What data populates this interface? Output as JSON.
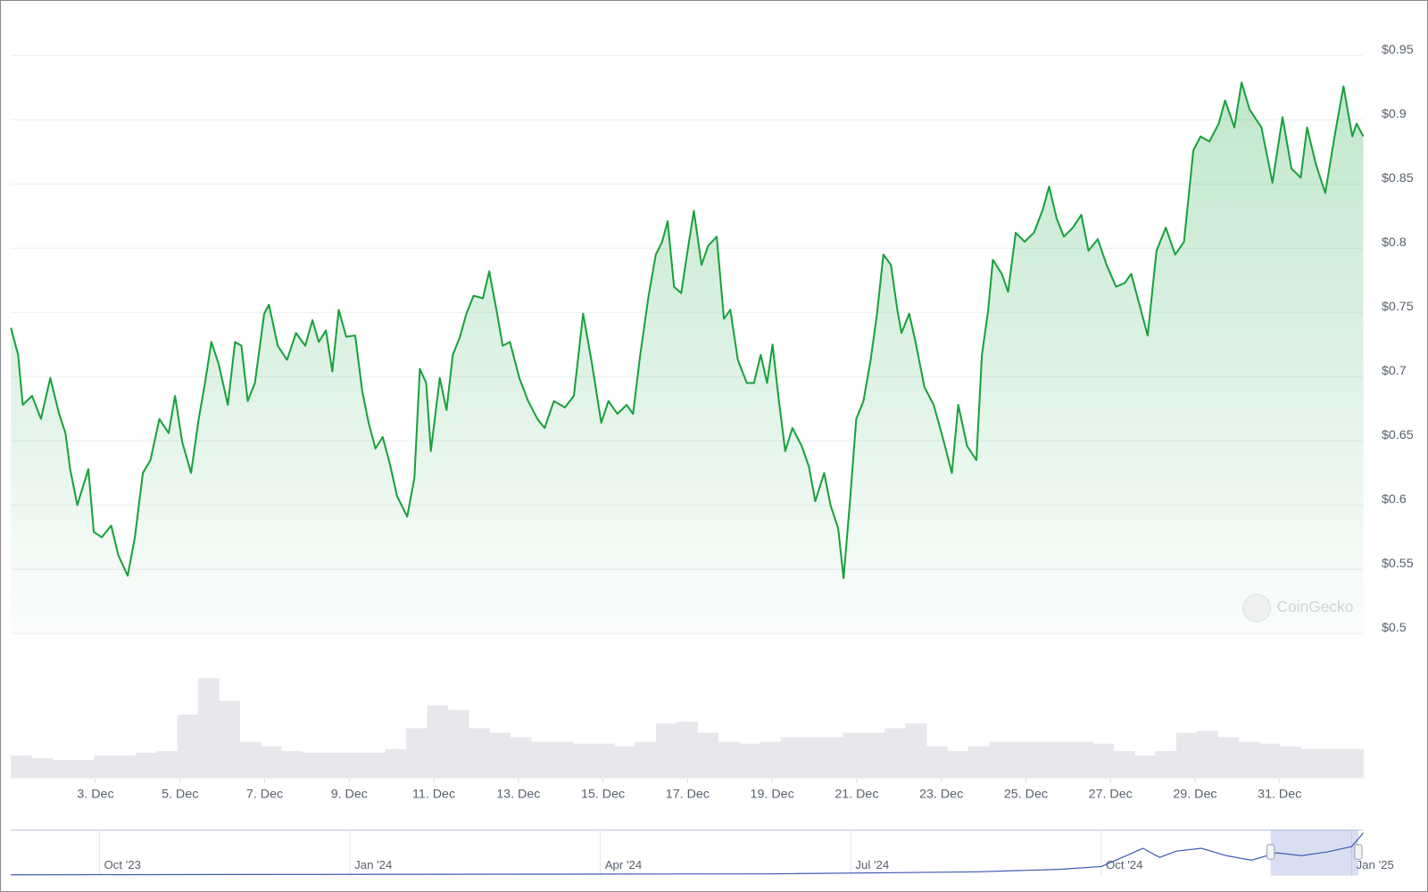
{
  "chart_data": {
    "type": "line",
    "color": "#18a23b",
    "grid": true,
    "watermark": "CoinGecko",
    "xlim": [
      1,
      32.98
    ],
    "ylim": [
      0.5,
      0.95
    ],
    "xticks": [
      {
        "value": 3,
        "label": "3. Dec"
      },
      {
        "value": 5,
        "label": "5. Dec"
      },
      {
        "value": 7,
        "label": "7. Dec"
      },
      {
        "value": 9,
        "label": "9. Dec"
      },
      {
        "value": 11,
        "label": "11. Dec"
      },
      {
        "value": 13,
        "label": "13. Dec"
      },
      {
        "value": 15,
        "label": "15. Dec"
      },
      {
        "value": 17,
        "label": "17. Dec"
      },
      {
        "value": 19,
        "label": "19. Dec"
      },
      {
        "value": 21,
        "label": "21. Dec"
      },
      {
        "value": 23,
        "label": "23. Dec"
      },
      {
        "value": 25,
        "label": "25. Dec"
      },
      {
        "value": 27,
        "label": "27. Dec"
      },
      {
        "value": 29,
        "label": "29. Dec"
      },
      {
        "value": 31,
        "label": "31. Dec"
      }
    ],
    "yticks": [
      {
        "value": 0.5,
        "label": "$0.5"
      },
      {
        "value": 0.55,
        "label": "$0.55"
      },
      {
        "value": 0.6,
        "label": "$0.6"
      },
      {
        "value": 0.65,
        "label": "$0.65"
      },
      {
        "value": 0.7,
        "label": "$0.7"
      },
      {
        "value": 0.75,
        "label": "$0.75"
      },
      {
        "value": 0.8,
        "label": "$0.8"
      },
      {
        "value": 0.85,
        "label": "$0.85"
      },
      {
        "value": 0.9,
        "label": "$0.9"
      },
      {
        "value": 0.95,
        "label": "$0.95"
      }
    ],
    "x": [
      1.0,
      1.17,
      1.28,
      1.5,
      1.71,
      1.93,
      2.14,
      2.29,
      2.4,
      2.57,
      2.83,
      2.96,
      3.15,
      3.37,
      3.54,
      3.76,
      3.93,
      4.12,
      4.3,
      4.51,
      4.73,
      4.88,
      5.05,
      5.26,
      5.44,
      5.59,
      5.74,
      5.91,
      6.13,
      6.3,
      6.45,
      6.6,
      6.77,
      6.99,
      7.1,
      7.31,
      7.53,
      7.74,
      7.96,
      8.13,
      8.28,
      8.45,
      8.6,
      8.75,
      8.93,
      9.14,
      9.31,
      9.46,
      9.62,
      9.79,
      9.96,
      10.13,
      10.37,
      10.54,
      10.67,
      10.82,
      10.93,
      11.14,
      11.3,
      11.45,
      11.62,
      11.77,
      11.94,
      12.16,
      12.31,
      12.48,
      12.63,
      12.8,
      13.02,
      13.23,
      13.45,
      13.62,
      13.84,
      14.1,
      14.31,
      14.53,
      14.74,
      14.96,
      15.13,
      15.34,
      15.56,
      15.71,
      15.88,
      16.08,
      16.25,
      16.4,
      16.53,
      16.68,
      16.85,
      17.0,
      17.15,
      17.33,
      17.49,
      17.69,
      17.86,
      18.01,
      18.19,
      18.4,
      18.57,
      18.73,
      18.88,
      19.01,
      19.16,
      19.31,
      19.48,
      19.7,
      19.87,
      20.02,
      20.23,
      20.38,
      20.56,
      20.69,
      20.84,
      20.99,
      21.16,
      21.33,
      21.48,
      21.63,
      21.81,
      21.96,
      22.06,
      22.24,
      22.39,
      22.6,
      22.82,
      23.03,
      23.25,
      23.4,
      23.61,
      23.83,
      23.96,
      24.11,
      24.22,
      24.43,
      24.58,
      24.76,
      24.97,
      25.19,
      25.4,
      25.55,
      25.73,
      25.9,
      26.11,
      26.31,
      26.48,
      26.7,
      26.91,
      27.13,
      27.34,
      27.49,
      27.66,
      27.88,
      28.09,
      28.31,
      28.53,
      28.74,
      28.96,
      29.13,
      29.34,
      29.56,
      29.71,
      29.93,
      30.1,
      30.29,
      30.57,
      30.83,
      31.07,
      31.28,
      31.5,
      31.65,
      31.86,
      32.08,
      32.3,
      32.51,
      32.72,
      32.82,
      32.98
    ],
    "values": [
      0.738,
      0.717,
      0.678,
      0.685,
      0.667,
      0.699,
      0.671,
      0.656,
      0.628,
      0.6,
      0.628,
      0.579,
      0.575,
      0.584,
      0.561,
      0.545,
      0.575,
      0.625,
      0.635,
      0.667,
      0.656,
      0.685,
      0.649,
      0.625,
      0.667,
      0.695,
      0.727,
      0.71,
      0.678,
      0.727,
      0.724,
      0.681,
      0.695,
      0.749,
      0.756,
      0.724,
      0.713,
      0.734,
      0.724,
      0.744,
      0.727,
      0.736,
      0.704,
      0.752,
      0.731,
      0.732,
      0.688,
      0.664,
      0.644,
      0.653,
      0.632,
      0.607,
      0.591,
      0.621,
      0.706,
      0.695,
      0.642,
      0.699,
      0.674,
      0.717,
      0.731,
      0.749,
      0.763,
      0.761,
      0.782,
      0.752,
      0.724,
      0.727,
      0.699,
      0.681,
      0.667,
      0.66,
      0.681,
      0.676,
      0.685,
      0.749,
      0.71,
      0.664,
      0.681,
      0.671,
      0.678,
      0.671,
      0.717,
      0.763,
      0.795,
      0.805,
      0.821,
      0.77,
      0.765,
      0.798,
      0.829,
      0.787,
      0.802,
      0.809,
      0.745,
      0.752,
      0.713,
      0.695,
      0.695,
      0.717,
      0.695,
      0.725,
      0.681,
      0.642,
      0.66,
      0.646,
      0.63,
      0.603,
      0.625,
      0.6,
      0.582,
      0.543,
      0.603,
      0.667,
      0.681,
      0.713,
      0.749,
      0.795,
      0.787,
      0.752,
      0.734,
      0.749,
      0.727,
      0.692,
      0.678,
      0.653,
      0.625,
      0.678,
      0.646,
      0.635,
      0.717,
      0.752,
      0.791,
      0.78,
      0.766,
      0.812,
      0.805,
      0.812,
      0.83,
      0.848,
      0.823,
      0.809,
      0.816,
      0.826,
      0.798,
      0.807,
      0.787,
      0.77,
      0.773,
      0.78,
      0.759,
      0.732,
      0.798,
      0.816,
      0.795,
      0.805,
      0.876,
      0.887,
      0.883,
      0.897,
      0.915,
      0.894,
      0.929,
      0.908,
      0.894,
      0.851,
      0.902,
      0.862,
      0.855,
      0.894,
      0.865,
      0.843,
      0.887,
      0.926,
      0.887,
      0.897,
      0.887
    ],
    "volume": {
      "color": "#e6e8ec",
      "ylim": [
        0,
        120
      ],
      "values": [
        25,
        22,
        20,
        20,
        25,
        25,
        28,
        30,
        70,
        110,
        85,
        40,
        35,
        30,
        28,
        28,
        28,
        28,
        32,
        55,
        80,
        75,
        55,
        50,
        45,
        40,
        40,
        38,
        38,
        35,
        40,
        60,
        62,
        50,
        40,
        38,
        40,
        45,
        45,
        45,
        50,
        50,
        55,
        60,
        35,
        30,
        35,
        40,
        40,
        40,
        40,
        40,
        38,
        30,
        25,
        30,
        50,
        52,
        45,
        40,
        38,
        35,
        32,
        32,
        32
      ]
    },
    "navigator": {
      "color": "#3d5bb0",
      "xlim": [
        -1.06,
        15.14
      ],
      "ylim": [
        0,
        1.6
      ],
      "xticks": [
        {
          "value": 0,
          "label": "Oct '23"
        },
        {
          "value": 3,
          "label": "Jan '24"
        },
        {
          "value": 6,
          "label": "Apr '24"
        },
        {
          "value": 9,
          "label": "Jul '24"
        },
        {
          "value": 12,
          "label": "Oct '24"
        },
        {
          "value": 15,
          "label": "Jan '25"
        }
      ],
      "x": [
        -1.06,
        8,
        10.5,
        11.5,
        12,
        12.3,
        12.5,
        12.7,
        12.9,
        13.2,
        13.5,
        13.8,
        14.1,
        14.4,
        14.7,
        15.0,
        15.14
      ],
      "values": [
        0.03,
        0.06,
        0.13,
        0.22,
        0.32,
        0.7,
        0.96,
        0.64,
        0.86,
        0.96,
        0.7,
        0.54,
        0.8,
        0.7,
        0.83,
        1.02,
        1.5
      ],
      "selection": [
        14.03,
        15.08
      ]
    }
  }
}
